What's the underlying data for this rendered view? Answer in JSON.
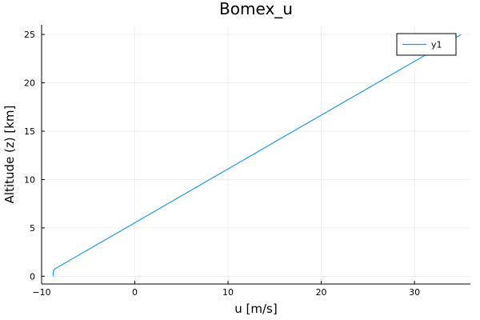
{
  "chart_data": {
    "type": "line",
    "title": "Bomex_u",
    "xlabel": "u [m/s]",
    "ylabel": "Altitude (z) [km]",
    "xlim": [
      -10,
      36
    ],
    "ylim": [
      -0.8,
      26
    ],
    "x_ticks": [
      -10,
      0,
      10,
      20,
      30
    ],
    "y_ticks": [
      0,
      5,
      10,
      15,
      20,
      25
    ],
    "x_tick_labels": [
      "−10",
      "0",
      "10",
      "20",
      "30"
    ],
    "y_tick_labels": [
      "0",
      "5",
      "10",
      "15",
      "20",
      "25"
    ],
    "grid": true,
    "legend_position": "top-right",
    "series": [
      {
        "name": "y1",
        "color": "#1f9bdc",
        "x": [
          -8.75,
          -8.75,
          -8.75,
          -8.6,
          35.0
        ],
        "y": [
          0.0,
          0.25,
          0.5,
          0.75,
          25.0
        ]
      }
    ]
  }
}
